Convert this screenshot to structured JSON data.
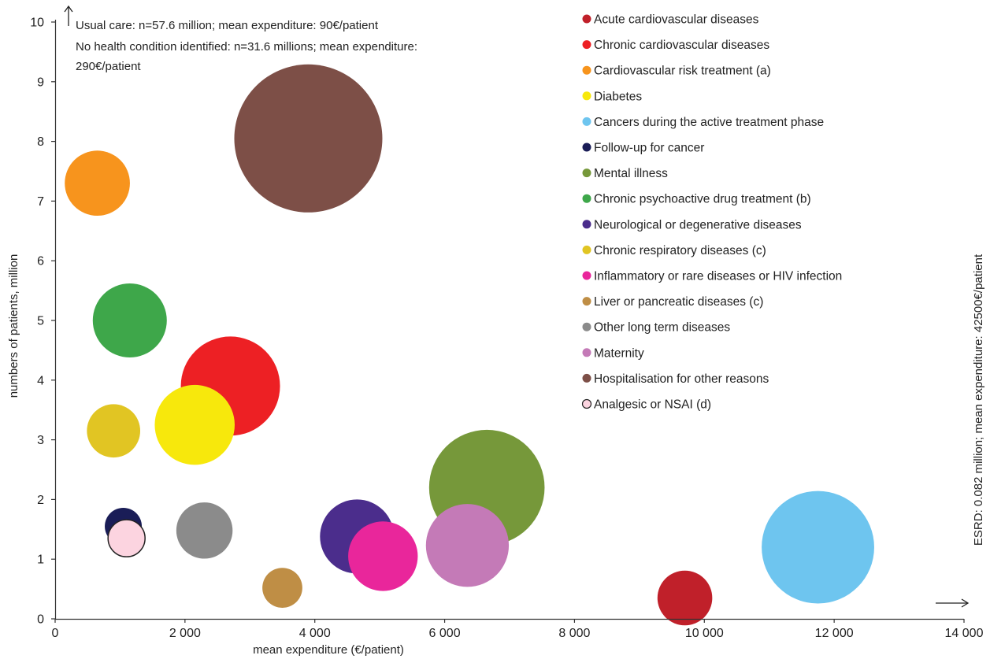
{
  "chart_data": {
    "type": "scatter",
    "bubble": true,
    "xlabel": "mean expenditure (€/patient)",
    "ylabel": "numbers of patients, million",
    "xlim": [
      0,
      14000
    ],
    "ylim": [
      0,
      10
    ],
    "x_ticks": [
      0,
      2000,
      4000,
      6000,
      8000,
      10000,
      12000,
      14000
    ],
    "x_tick_labels": [
      "0",
      "2 000",
      "4 000",
      "6 000",
      "8 000",
      "10 000",
      "12 000",
      "14 000"
    ],
    "y_ticks": [
      0,
      1,
      2,
      3,
      4,
      5,
      6,
      7,
      8,
      9,
      10
    ],
    "y_tick_labels": [
      "0",
      "1",
      "2",
      "3",
      "4",
      "5",
      "6",
      "7",
      "8",
      "9",
      "10"
    ],
    "grid": false,
    "legend_position": "top-right",
    "annotations": {
      "usual_care": "Usual care: n=57.6 million; mean expenditure: 90€/patient",
      "no_condition_line1": "No health condition identified: n=31.6 millions; mean expenditure:",
      "no_condition_line2": "290€/patient",
      "esrd": "ESRD: 0.082 million; mean expenditure: 42500€/patient"
    },
    "series": [
      {
        "name": "Acute cardiovascular diseases",
        "color": "#c0202a",
        "x": 9700,
        "y": 0.35,
        "size": 0.37
      },
      {
        "name": "Chronic cardiovascular diseases",
        "color": "#ed2024",
        "x": 2700,
        "y": 3.9,
        "size": 0.67
      },
      {
        "name": "Cardiovascular risk treatment (a)",
        "color": "#f7941d",
        "x": 650,
        "y": 7.3,
        "size": 0.44
      },
      {
        "name": "Diabetes",
        "color": "#f7e80c",
        "x": 2150,
        "y": 3.25,
        "size": 0.54
      },
      {
        "name": "Cancers during the active treatment phase",
        "color": "#6ec5ef",
        "x": 11750,
        "y": 1.2,
        "size": 0.76
      },
      {
        "name": "Follow-up for cancer",
        "color": "#1a1d57",
        "x": 1050,
        "y": 1.55,
        "size": 0.25
      },
      {
        "name": "Mental illness",
        "color": "#76983a",
        "x": 6650,
        "y": 2.2,
        "size": 0.78
      },
      {
        "name": "Chronic psychoactive drug treatment (b)",
        "color": "#3ea74a",
        "x": 1150,
        "y": 5.0,
        "size": 0.5
      },
      {
        "name": "Neurological or degenerative diseases",
        "color": "#4b2d8c",
        "x": 4650,
        "y": 1.38,
        "size": 0.5
      },
      {
        "name": "Chronic respiratory diseases (c)",
        "color": "#e1c523",
        "x": 900,
        "y": 3.15,
        "size": 0.36
      },
      {
        "name": "Inflammatory or rare diseases or HIV infection",
        "color": "#e9269b",
        "x": 5050,
        "y": 1.05,
        "size": 0.47
      },
      {
        "name": "Liver or pancreatic diseases (c)",
        "color": "#bf8e45",
        "x": 3500,
        "y": 0.52,
        "size": 0.27
      },
      {
        "name": "Other long term diseases",
        "color": "#8b8b8b",
        "x": 2300,
        "y": 1.48,
        "size": 0.38
      },
      {
        "name": "Maternity",
        "color": "#c47ab7",
        "x": 6350,
        "y": 1.23,
        "size": 0.56
      },
      {
        "name": "Hospitalisation for other reasons",
        "color": "#7d4f47",
        "x": 3900,
        "y": 8.05,
        "size": 1.0
      },
      {
        "name": "Analgesic or NSAI (d)",
        "color": "#fcd4e0",
        "stroke": "#222222",
        "x": 1100,
        "y": 1.35,
        "size": 0.25
      }
    ]
  }
}
